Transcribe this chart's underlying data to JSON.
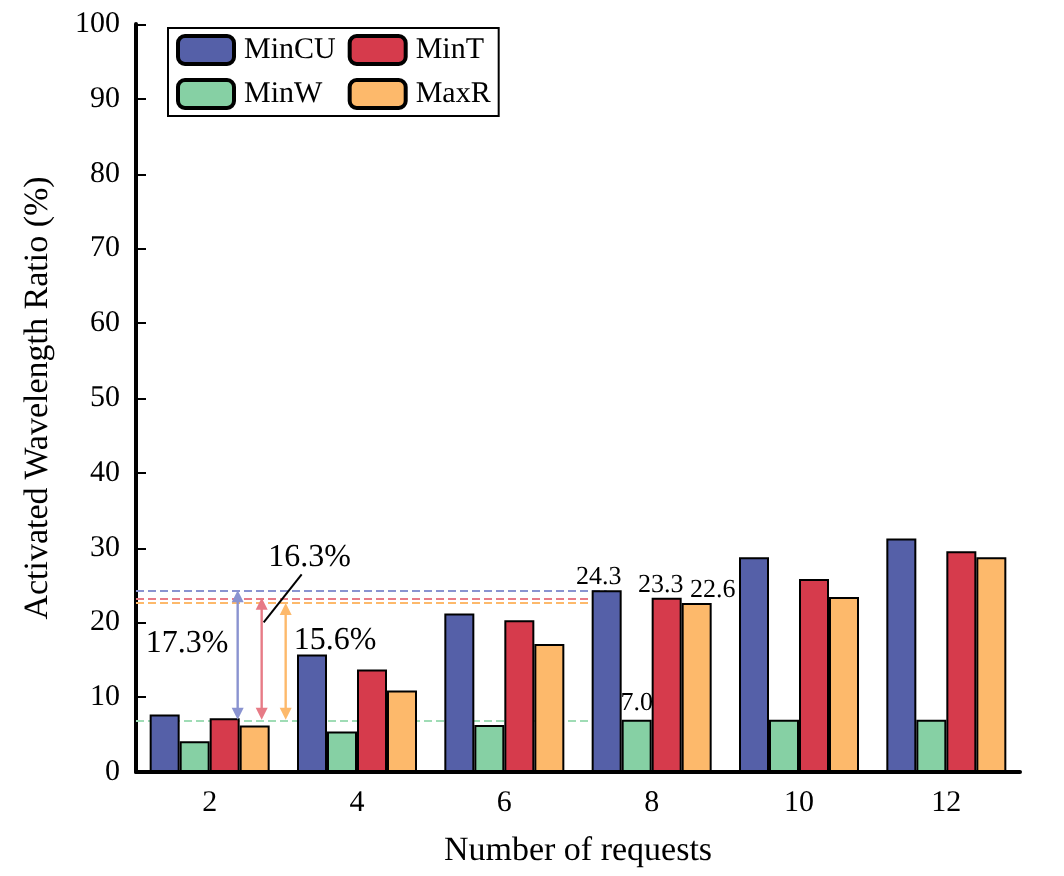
{
  "chart_data": {
    "type": "bar",
    "xlabel": "Number of requests",
    "ylabel": "Activated Wavelength Ratio (%)",
    "categories": [
      "2",
      "4",
      "6",
      "8",
      "10",
      "12"
    ],
    "series": [
      {
        "name": "MinCU",
        "color": "#5560a8",
        "values": [
          7.7,
          15.7,
          21.2,
          24.3,
          28.7,
          31.2
        ],
        "value_labels": [
          null,
          null,
          null,
          "24.3",
          null,
          null
        ]
      },
      {
        "name": "MinW",
        "color": "#86d0a4",
        "values": [
          4.1,
          5.4,
          6.3,
          7.0,
          7.0,
          7.0
        ],
        "value_labels": [
          null,
          null,
          null,
          "7.0",
          null,
          null
        ]
      },
      {
        "name": "MinT",
        "color": "#d63b4c",
        "values": [
          7.2,
          13.7,
          20.3,
          23.3,
          25.8,
          29.5
        ],
        "value_labels": [
          null,
          null,
          null,
          "23.3",
          null,
          null
        ]
      },
      {
        "name": "MaxR",
        "color": "#fdb96b",
        "values": [
          6.2,
          10.9,
          17.1,
          22.6,
          23.4,
          28.7
        ],
        "value_labels": [
          null,
          null,
          null,
          "22.6",
          null,
          null
        ]
      }
    ],
    "ylim": [
      0,
      100
    ],
    "yticks": [
      0,
      10,
      20,
      30,
      40,
      50,
      60,
      70,
      80,
      90,
      100
    ],
    "ref_lines": [
      {
        "axis": "y",
        "value": 24.3,
        "color": "#8a93d0",
        "line_style": "dashed"
      },
      {
        "axis": "y",
        "value": 23.3,
        "color": "#e77b86",
        "line_style": "dashed"
      },
      {
        "axis": "y",
        "value": 22.6,
        "color": "#fdb96b",
        "line_style": "dashed"
      },
      {
        "axis": "y",
        "value": 7.0,
        "color": "#9fdcb5",
        "line_style": "dashed"
      }
    ],
    "annotations": [
      "17.3%",
      "16.3%",
      "15.6%"
    ],
    "grid": false,
    "legend": "top left"
  }
}
